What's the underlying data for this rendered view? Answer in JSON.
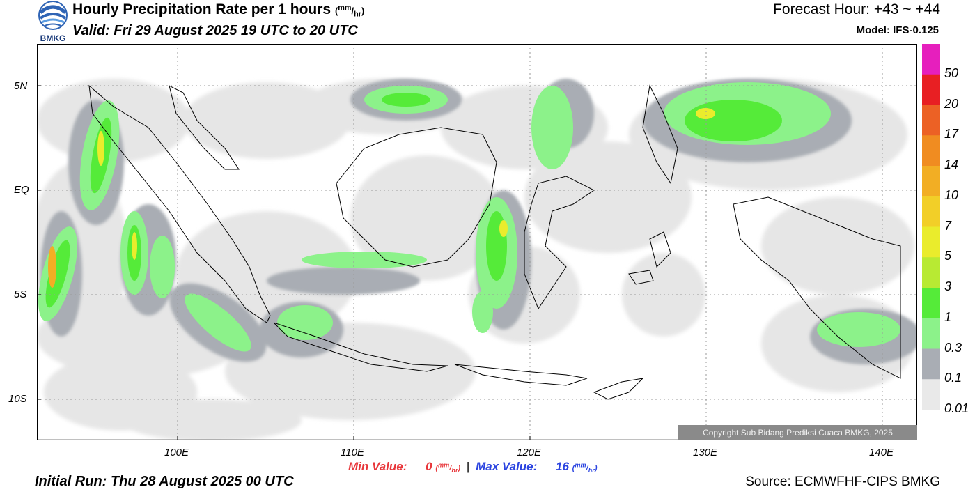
{
  "header": {
    "logo_text": "BMKG",
    "title": "Hourly Precipitation Rate per 1 hours",
    "title_unit_mm": "mm",
    "title_unit_hr": "hr",
    "valid": "Valid: Fri 29 August 2025 19 UTC to 20 UTC",
    "forecast_hour": "Forecast Hour: +43 ~ +44",
    "model": "Model: IFS-0.125"
  },
  "map": {
    "lat_labels": [
      "5N",
      "EQ",
      "5S",
      "10S"
    ],
    "lon_labels": [
      "100E",
      "110E",
      "120E",
      "130E",
      "140E"
    ],
    "copyright": "Copyright Sub Bidang Prediksi Cuaca BMKG, 2025"
  },
  "colorbar": {
    "labels": [
      "50",
      "20",
      "17",
      "14",
      "10",
      "7",
      "5",
      "3",
      "1",
      "0.3",
      "0.1",
      "0.01"
    ],
    "colors": [
      "#e61fbd",
      "#e81f23",
      "#ec6125",
      "#f08c21",
      "#f2ae24",
      "#f2cf28",
      "#eaec2c",
      "#b8ea33",
      "#55eb39",
      "#8cf28a",
      "#a9adb4",
      "#e9e9e9"
    ]
  },
  "footer": {
    "min_label": "Min Value:",
    "min_value": "0",
    "separator": "|",
    "max_label": "Max Value:",
    "max_value": "16",
    "unit_mm": "mm",
    "unit_hr": "hr",
    "initial_run": "Initial Run: Thu 28 August 2025 00 UTC",
    "source": "Source: ECMWFHF-CIPS BMKG"
  }
}
